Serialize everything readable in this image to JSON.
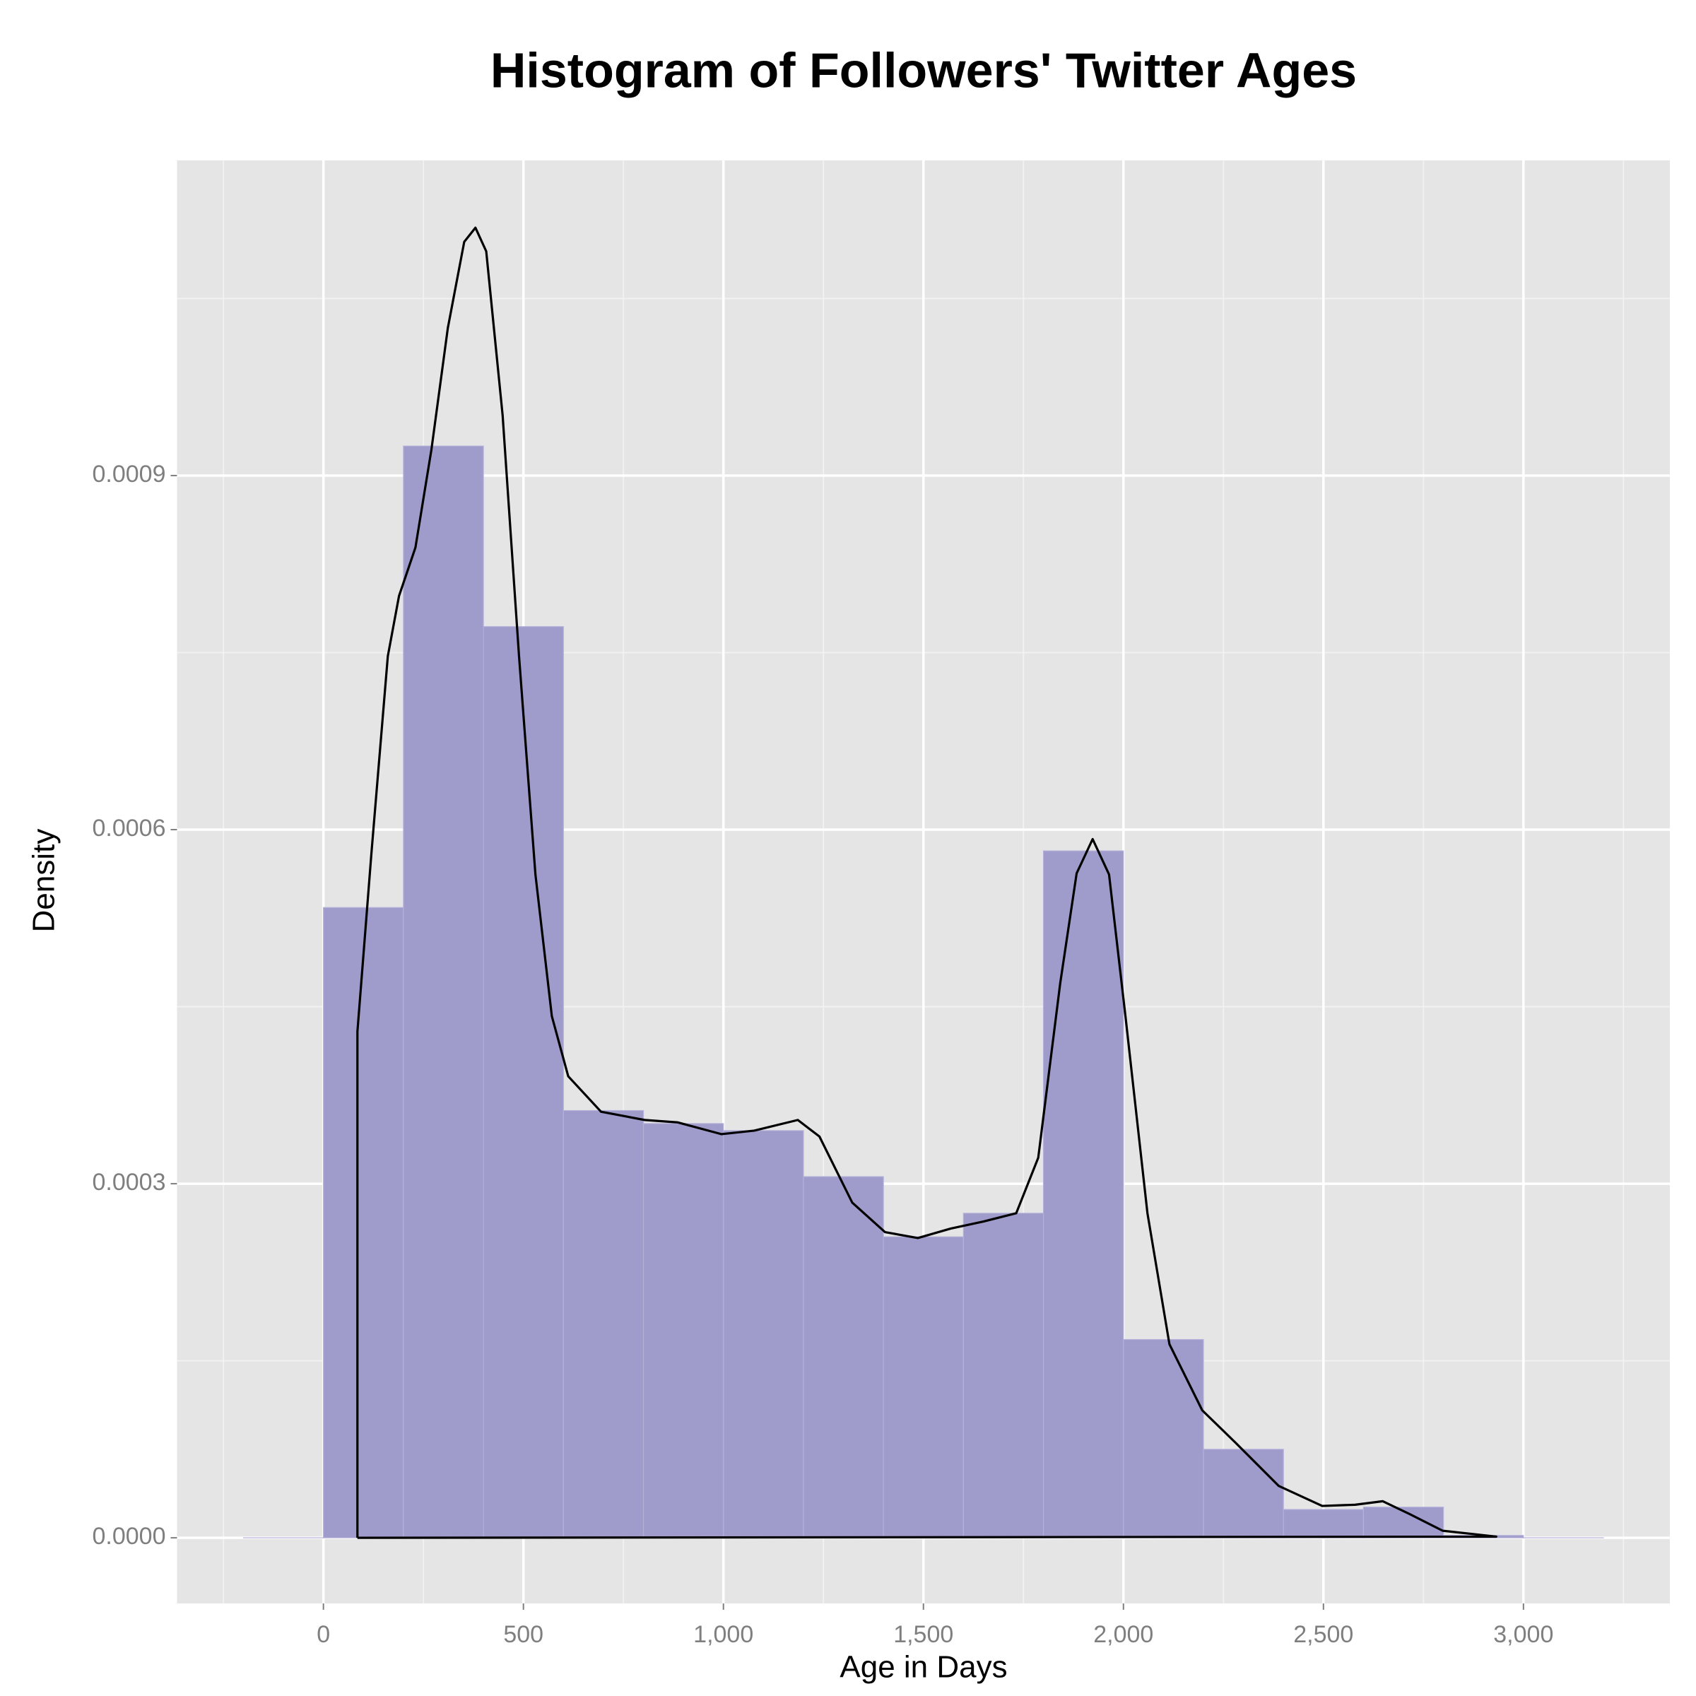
{
  "chart_data": {
    "type": "histogram",
    "title": "Histogram of Followers' Twitter Ages",
    "x_label": "Age in Days",
    "y_label": "Density",
    "bins": [
      -200,
      0,
      200,
      400,
      600,
      800,
      1000,
      1200,
      1400,
      1600,
      1800,
      2000,
      2200,
      2400,
      2600,
      2800,
      3000,
      3200
    ],
    "values": [
      0,
      0.000534,
      0.000925,
      0.000772,
      0.000362,
      0.000351,
      0.000345,
      0.000306,
      0.000255,
      0.000275,
      0.000582,
      0.000168,
      7.5e-05,
      2.4e-05,
      2.6e-05,
      2e-06,
      0
    ],
    "color": "#9f9ccb",
    "xlim": [
      -366,
      3366
    ],
    "ylim": [
      -5.56e-05,
      0.001167
    ],
    "xticks": [
      0,
      500,
      {
        "value": 1000,
        "label": "1,000"
      },
      {
        "value": 1500,
        "label": "1,500"
      },
      {
        "value": 2000,
        "label": "2,000"
      },
      {
        "value": 2500,
        "label": "2,500"
      },
      {
        "value": 3000,
        "label": "3,000"
      }
    ],
    "yticks": [
      {
        "value": 0,
        "label": "0.0000"
      },
      {
        "value": 0.0003,
        "label": "0.0003"
      },
      {
        "value": 0.0006,
        "label": "0.0006"
      },
      {
        "value": 0.0009,
        "label": "0.0009"
      }
    ],
    "grid": true,
    "density": {
      "color": "#000000",
      "x": [
        85,
        85,
        120,
        161,
        189,
        230,
        270,
        311,
        352,
        380,
        407,
        448,
        489,
        530,
        571,
        612,
        694,
        803,
        885,
        995,
        1077,
        1186,
        1240,
        1322,
        1404,
        1486,
        1568,
        1650,
        1732,
        1787,
        1842,
        1883,
        1923,
        1964,
        2005,
        2060,
        2115,
        2197,
        2279,
        2388,
        2497,
        2579,
        2648,
        2716,
        2798,
        2932,
        85
      ],
      "y": [
        0,
        0.000429,
        0.00058,
        0.000747,
        0.000798,
        0.000839,
        0.000922,
        0.001025,
        0.001098,
        0.00111,
        0.00109,
        0.000951,
        0.000747,
        0.000562,
        0.000442,
        0.000391,
        0.000361,
        0.000354,
        0.000352,
        0.000342,
        0.000345,
        0.000354,
        0.00034,
        0.000284,
        0.000259,
        0.000254,
        0.000262,
        0.000268,
        0.000275,
        0.000322,
        0.00047,
        0.000563,
        0.000592,
        0.000562,
        0.000442,
        0.000275,
        0.000164,
        0.000108,
        8.1e-05,
        4.4e-05,
        2.7e-05,
        2.8e-05,
        3.1e-05,
        2e-05,
        6e-06,
        1e-06,
        0
      ]
    }
  }
}
